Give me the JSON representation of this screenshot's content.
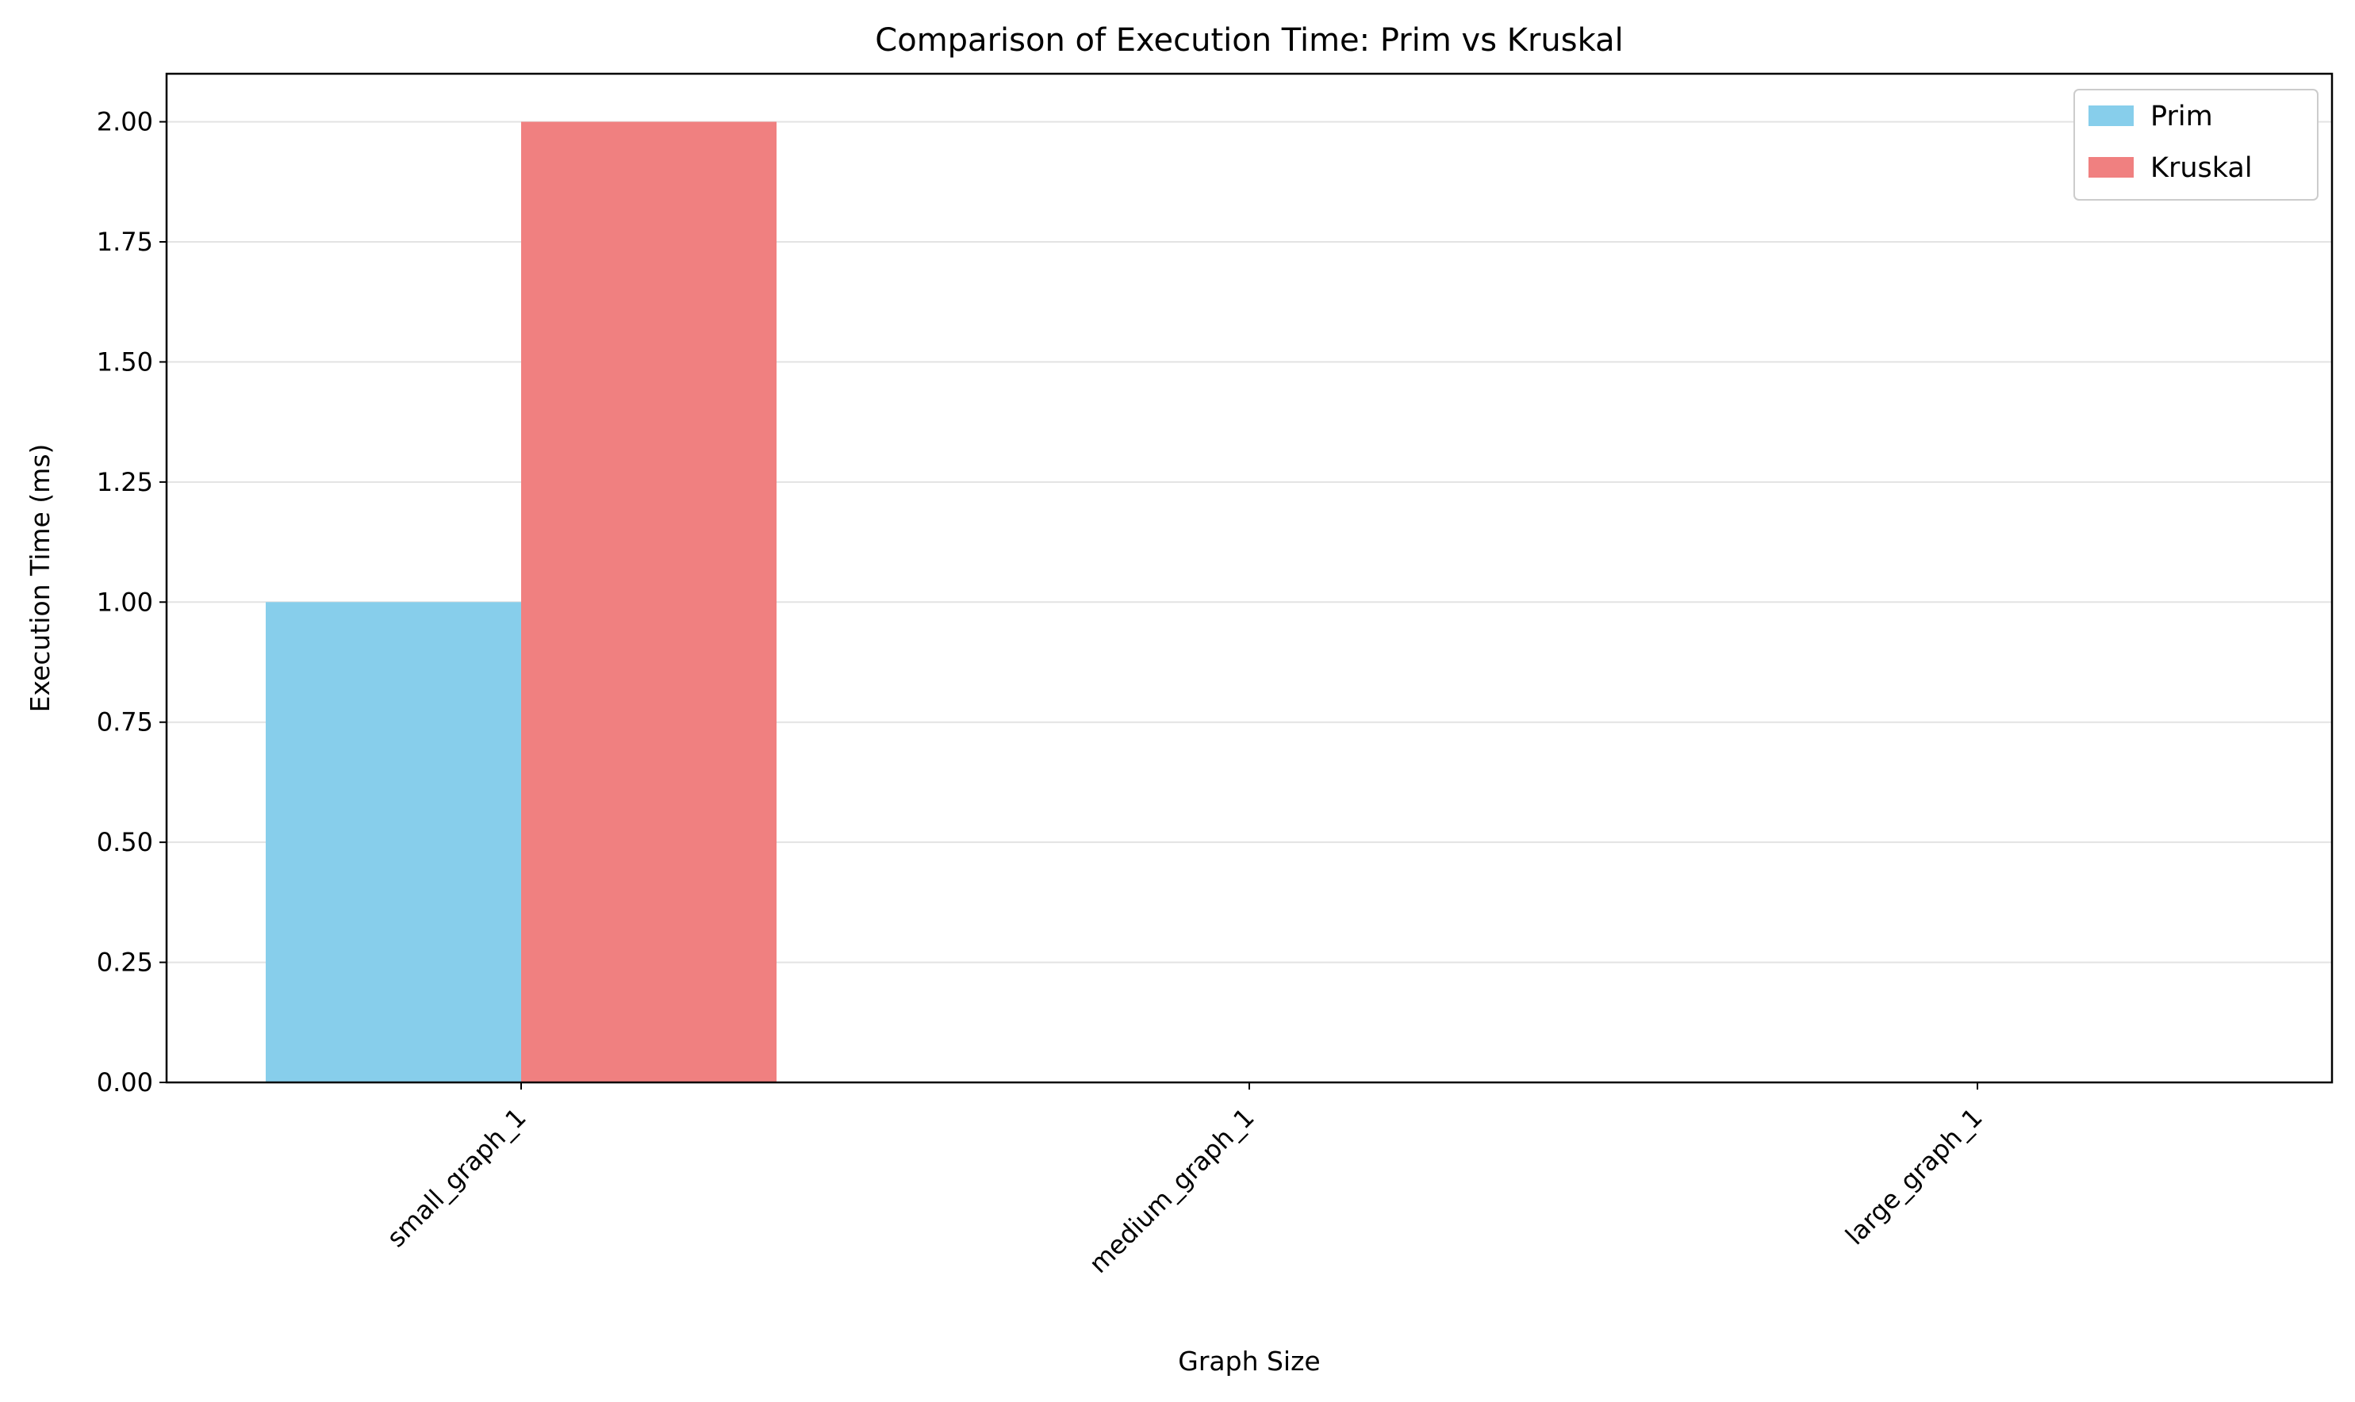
{
  "chart_data": {
    "type": "bar",
    "title": "Comparison of Execution Time: Prim vs Kruskal",
    "xlabel": "Graph Size",
    "ylabel": "Execution Time (ms)",
    "categories": [
      "small_graph_1",
      "medium_graph_1",
      "large_graph_1"
    ],
    "series": [
      {
        "name": "Prim",
        "values": [
          1.0,
          0.0,
          0.0
        ],
        "color": "#87ceeb"
      },
      {
        "name": "Kruskal",
        "values": [
          2.0,
          0.0,
          0.0
        ],
        "color": "#f08080"
      }
    ],
    "ylim": [
      0,
      2.1
    ],
    "yticks": [
      "0.00",
      "0.25",
      "0.50",
      "0.75",
      "1.00",
      "1.25",
      "1.50",
      "1.75",
      "2.00"
    ],
    "grid": "y",
    "legend_position": "top-right"
  }
}
